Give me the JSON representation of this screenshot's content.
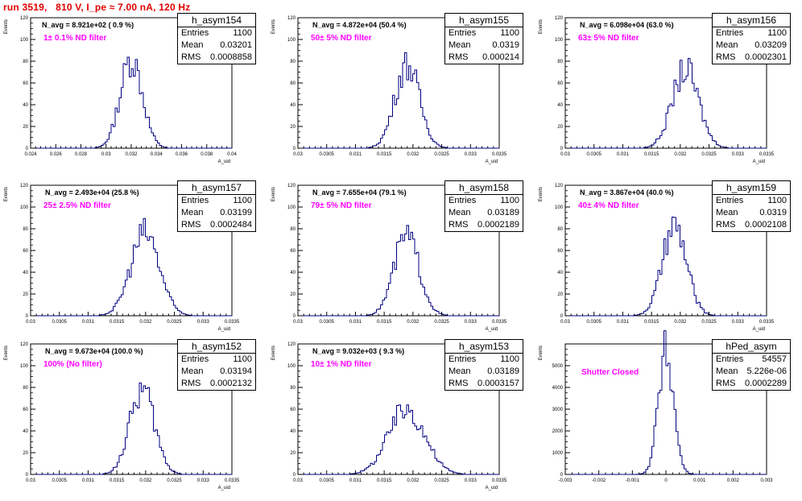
{
  "page": {
    "title": "run 3519,   810 V, I_pe ≈ 7.00 nA, 120 Hz",
    "filter_color": "#ff00ff",
    "title_color": "#e00000"
  },
  "chart_data": [
    {
      "type": "bar",
      "hist_name": "h_asym154",
      "stats": {
        "entries_label": "Entries",
        "entries": "1100",
        "mean_label": "Mean",
        "mean": "0.03201",
        "rms_label": "RMS",
        "rms": "0.0008858"
      },
      "n_avg": "N_avg = 8.921e+02 ( 0.9 %)",
      "filter_label": "1± 0.1% ND filter",
      "xlabel": "A_uid",
      "ylabel": "Events",
      "xlim": [
        0.024,
        0.04
      ],
      "ylim": [
        0,
        120
      ],
      "xticks": [
        "0.024",
        "0.026",
        "0.028",
        "0.03",
        "0.032",
        "0.034",
        "0.036",
        "0.038",
        "0.04"
      ],
      "yticks": [
        "0",
        "20",
        "40",
        "60",
        "80",
        "100",
        "120"
      ],
      "mean_val": 0.03201,
      "rms_val": 0.0008858,
      "peak": 82,
      "bins": 100
    },
    {
      "type": "bar",
      "hist_name": "h_asym155",
      "stats": {
        "entries_label": "Entries",
        "entries": "1100",
        "mean_label": "Mean",
        "mean": "0.0319",
        "rms_label": "RMS",
        "rms": "0.000214"
      },
      "n_avg": "N_avg = 4.872e+04 (50.4 %)",
      "filter_label": "50± 5% ND filter",
      "xlabel": "A_uid",
      "ylabel": "Events",
      "xlim": [
        0.03,
        0.0335
      ],
      "ylim": [
        0,
        120
      ],
      "xticks": [
        "0.03",
        "0.0305",
        "0.031",
        "0.0315",
        "0.032",
        "0.0325",
        "0.033",
        "0.0335"
      ],
      "yticks": [
        "0",
        "20",
        "40",
        "60",
        "80",
        "100",
        "120"
      ],
      "mean_val": 0.0319,
      "rms_val": 0.000214,
      "peak": 77,
      "bins": 100
    },
    {
      "type": "bar",
      "hist_name": "h_asym156",
      "stats": {
        "entries_label": "Entries",
        "entries": "1100",
        "mean_label": "Mean",
        "mean": "0.03209",
        "rms_label": "RMS",
        "rms": "0.0002301"
      },
      "n_avg": "N_avg = 6.098e+04 (63.0 %)",
      "filter_label": "63± 5% ND filter",
      "xlabel": "A_uid",
      "ylabel": "Events",
      "xlim": [
        0.03,
        0.0335
      ],
      "ylim": [
        0,
        120
      ],
      "xticks": [
        "0.03",
        "0.0305",
        "0.031",
        "0.0315",
        "0.032",
        "0.0325",
        "0.033",
        "0.0335"
      ],
      "yticks": [
        "0",
        "20",
        "40",
        "60",
        "80",
        "100",
        "120"
      ],
      "mean_val": 0.03209,
      "rms_val": 0.0002301,
      "peak": 72,
      "bins": 100
    },
    {
      "type": "bar",
      "hist_name": "h_asym157",
      "stats": {
        "entries_label": "Entries",
        "entries": "1100",
        "mean_label": "Mean",
        "mean": "0.03199",
        "rms_label": "RMS",
        "rms": "0.0002484"
      },
      "n_avg": "N_avg = 2.493e+04 (25.8 %)",
      "filter_label": "25± 2.5% ND filter",
      "xlabel": "A_uid",
      "ylabel": "Events",
      "xlim": [
        0.03,
        0.0335
      ],
      "ylim": [
        0,
        120
      ],
      "xticks": [
        "0.03",
        "0.0305",
        "0.031",
        "0.0315",
        "0.032",
        "0.0325",
        "0.033",
        "0.0335"
      ],
      "yticks": [
        "0",
        "20",
        "40",
        "60",
        "80",
        "100",
        "120"
      ],
      "mean_val": 0.03199,
      "rms_val": 0.0002484,
      "peak": 76,
      "bins": 100
    },
    {
      "type": "bar",
      "hist_name": "h_asym158",
      "stats": {
        "entries_label": "Entries",
        "entries": "1100",
        "mean_label": "Mean",
        "mean": "0.03189",
        "rms_label": "RMS",
        "rms": "0.0002189"
      },
      "n_avg": "N_avg = 7.655e+04 (79.1 %)",
      "filter_label": "79± 5% ND filter",
      "xlabel": "A_uid",
      "ylabel": "Events",
      "xlim": [
        0.03,
        0.0335
      ],
      "ylim": [
        0,
        120
      ],
      "xticks": [
        "0.03",
        "0.0305",
        "0.031",
        "0.0315",
        "0.032",
        "0.0325",
        "0.033",
        "0.0335"
      ],
      "yticks": [
        "0",
        "20",
        "40",
        "60",
        "80",
        "100",
        "120"
      ],
      "mean_val": 0.03189,
      "rms_val": 0.0002189,
      "peak": 73,
      "bins": 100
    },
    {
      "type": "bar",
      "hist_name": "h_asym159",
      "stats": {
        "entries_label": "Entries",
        "entries": "1100",
        "mean_label": "Mean",
        "mean": "0.0319",
        "rms_label": "RMS",
        "rms": "0.0002108"
      },
      "n_avg": "N_avg = 3.867e+04 (40.0 %)",
      "filter_label": "40± 4% ND filter",
      "xlabel": "A_uid",
      "ylabel": "Events",
      "xlim": [
        0.03,
        0.0335
      ],
      "ylim": [
        0,
        120
      ],
      "xticks": [
        "0.03",
        "0.0305",
        "0.031",
        "0.0315",
        "0.032",
        "0.0325",
        "0.033",
        "0.0335"
      ],
      "yticks": [
        "0",
        "20",
        "40",
        "60",
        "80",
        "100",
        "120"
      ],
      "mean_val": 0.0319,
      "rms_val": 0.0002108,
      "peak": 81,
      "bins": 100
    },
    {
      "type": "bar",
      "hist_name": "h_asym152",
      "stats": {
        "entries_label": "Entries",
        "entries": "1100",
        "mean_label": "Mean",
        "mean": "0.03194",
        "rms_label": "RMS",
        "rms": "0.0002132"
      },
      "n_avg": "N_avg = 9.673e+04 (100.0 %)",
      "filter_label": "100% (No filter)",
      "xlabel": "A_uid",
      "ylabel": "Events",
      "xlim": [
        0.03,
        0.0335
      ],
      "ylim": [
        0,
        120
      ],
      "xticks": [
        "0.03",
        "0.0305",
        "0.031",
        "0.0315",
        "0.032",
        "0.0325",
        "0.033",
        "0.0335"
      ],
      "yticks": [
        "0",
        "20",
        "40",
        "60",
        "80",
        "100",
        "120"
      ],
      "mean_val": 0.03194,
      "rms_val": 0.0002132,
      "peak": 78,
      "bins": 100
    },
    {
      "type": "bar",
      "hist_name": "h_asym153",
      "stats": {
        "entries_label": "Entries",
        "entries": "1100",
        "mean_label": "Mean",
        "mean": "0.03189",
        "rms_label": "RMS",
        "rms": "0.0003157"
      },
      "n_avg": "N_avg = 9.032e+03 ( 9.3 %)",
      "filter_label": "10± 1% ND filter",
      "xlabel": "A_uid",
      "ylabel": "Events",
      "xlim": [
        0.03,
        0.0335
      ],
      "ylim": [
        0,
        120
      ],
      "xticks": [
        "0.03",
        "0.0305",
        "0.031",
        "0.0315",
        "0.032",
        "0.0325",
        "0.033",
        "0.0335"
      ],
      "yticks": [
        "0",
        "20",
        "40",
        "60",
        "80",
        "100",
        "120"
      ],
      "mean_val": 0.03189,
      "rms_val": 0.0003157,
      "peak": 60,
      "bins": 100
    },
    {
      "type": "bar",
      "hist_name": "hPed_asym",
      "stats": {
        "entries_label": "Entries",
        "entries": "54557",
        "mean_label": "Mean",
        "mean": "5.226e-06",
        "rms_label": "RMS",
        "rms": "0.0002289"
      },
      "n_avg": "",
      "filter_label": "Shutter Closed",
      "xlabel": "",
      "ylabel": "Events",
      "xlim": [
        -0.003,
        0.003
      ],
      "ylim": [
        0,
        6000
      ],
      "xticks": [
        "-0.003",
        "-0.002",
        "-0.001",
        "0",
        "0.001",
        "0.002",
        "0.003"
      ],
      "yticks": [
        "0",
        "1000",
        "2000",
        "3000",
        "4000",
        "5000"
      ],
      "mean_val": 5.226e-06,
      "rms_val": 0.0002289,
      "peak": 5600,
      "bins": 100
    }
  ]
}
